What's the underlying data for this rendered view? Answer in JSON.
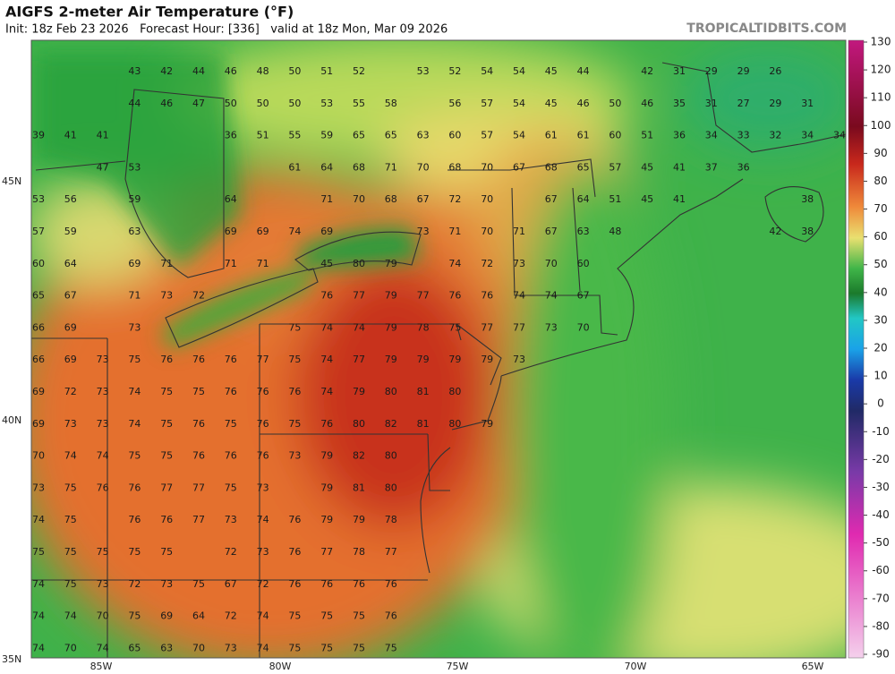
{
  "header": {
    "title": "AIGFS 2-meter Air Temperature (°F)",
    "subtitle": "Init: 18z Feb 23 2026   Forecast Hour: [336]   valid at 18z Mon, Mar 09 2026",
    "site": "TROPICALTIDBITS.COM"
  },
  "map": {
    "lat_labels": [
      "45N",
      "40N",
      "35N"
    ],
    "lon_labels": [
      "85W",
      "80W",
      "75W",
      "70W",
      "65W"
    ],
    "values": [
      [
        null,
        null,
        null,
        43,
        42,
        44,
        46,
        48,
        50,
        51,
        52,
        null,
        53,
        52,
        54,
        54,
        45,
        44,
        null,
        42,
        31,
        29,
        29,
        26,
        null,
        null
      ],
      [
        null,
        null,
        null,
        44,
        46,
        47,
        50,
        50,
        50,
        53,
        55,
        58,
        null,
        56,
        57,
        54,
        45,
        46,
        50,
        46,
        35,
        31,
        27,
        29,
        31,
        null
      ],
      [
        39,
        41,
        41,
        null,
        null,
        null,
        36,
        51,
        55,
        59,
        65,
        65,
        63,
        60,
        57,
        54,
        61,
        61,
        60,
        51,
        36,
        34,
        33,
        32,
        34,
        34
      ],
      [
        null,
        null,
        47,
        53,
        null,
        null,
        null,
        null,
        61,
        64,
        68,
        71,
        70,
        68,
        70,
        67,
        68,
        65,
        57,
        45,
        41,
        37,
        36,
        null,
        null,
        null
      ],
      [
        53,
        56,
        null,
        59,
        null,
        null,
        64,
        null,
        null,
        71,
        70,
        68,
        67,
        72,
        70,
        null,
        67,
        64,
        51,
        45,
        41,
        null,
        null,
        null,
        38,
        null
      ],
      [
        57,
        59,
        null,
        63,
        null,
        null,
        69,
        69,
        74,
        69,
        null,
        null,
        73,
        71,
        70,
        71,
        67,
        63,
        48,
        null,
        null,
        null,
        null,
        42,
        38,
        null
      ],
      [
        60,
        64,
        null,
        69,
        71,
        null,
        71,
        71,
        null,
        45,
        80,
        79,
        null,
        74,
        72,
        73,
        70,
        60,
        null,
        null,
        null,
        null,
        null,
        null,
        null,
        null
      ],
      [
        65,
        67,
        null,
        71,
        73,
        72,
        null,
        null,
        null,
        76,
        77,
        79,
        77,
        76,
        76,
        74,
        74,
        67,
        null,
        null,
        null,
        null,
        null,
        null,
        null,
        null
      ],
      [
        66,
        69,
        null,
        73,
        null,
        null,
        null,
        null,
        75,
        74,
        74,
        79,
        78,
        75,
        77,
        77,
        73,
        70,
        null,
        null,
        null,
        null,
        null,
        null,
        null,
        null
      ],
      [
        66,
        69,
        73,
        75,
        76,
        76,
        76,
        77,
        75,
        74,
        77,
        79,
        79,
        79,
        79,
        73,
        null,
        null,
        null,
        null,
        null,
        null,
        null,
        null,
        null,
        null
      ],
      [
        69,
        72,
        73,
        74,
        75,
        75,
        76,
        76,
        76,
        74,
        79,
        80,
        81,
        80,
        null,
        null,
        null,
        null,
        null,
        null,
        null,
        null,
        null,
        null,
        null,
        null
      ],
      [
        69,
        73,
        73,
        74,
        75,
        76,
        75,
        76,
        75,
        76,
        80,
        82,
        81,
        80,
        79,
        null,
        null,
        null,
        null,
        null,
        null,
        null,
        null,
        null,
        null,
        null
      ],
      [
        70,
        74,
        74,
        75,
        75,
        76,
        76,
        76,
        73,
        79,
        82,
        80,
        null,
        null,
        null,
        null,
        null,
        null,
        null,
        null,
        null,
        null,
        null,
        null,
        null,
        null
      ],
      [
        73,
        75,
        76,
        76,
        77,
        77,
        75,
        73,
        null,
        79,
        81,
        80,
        null,
        null,
        null,
        null,
        null,
        null,
        null,
        null,
        null,
        null,
        null,
        null,
        null,
        null
      ],
      [
        74,
        75,
        null,
        76,
        76,
        77,
        73,
        74,
        76,
        79,
        79,
        78,
        null,
        null,
        null,
        null,
        null,
        null,
        null,
        null,
        null,
        null,
        null,
        null,
        null,
        null
      ],
      [
        75,
        75,
        75,
        75,
        75,
        null,
        72,
        73,
        76,
        77,
        78,
        77,
        null,
        null,
        null,
        null,
        null,
        null,
        null,
        null,
        null,
        null,
        null,
        null,
        null,
        null
      ],
      [
        74,
        75,
        73,
        72,
        73,
        75,
        67,
        72,
        76,
        76,
        76,
        76,
        null,
        null,
        null,
        null,
        null,
        null,
        null,
        null,
        null,
        null,
        null,
        null,
        null,
        null
      ],
      [
        74,
        74,
        70,
        75,
        69,
        64,
        72,
        74,
        75,
        75,
        75,
        76,
        null,
        null,
        null,
        null,
        null,
        null,
        null,
        null,
        null,
        null,
        null,
        null,
        null,
        null
      ],
      [
        74,
        70,
        74,
        65,
        63,
        70,
        73,
        74,
        75,
        75,
        75,
        75,
        null,
        null,
        null,
        null,
        null,
        null,
        null,
        null,
        null,
        null,
        null,
        null,
        null,
        null
      ]
    ]
  },
  "colorbar": {
    "lim": [
      -90,
      130
    ],
    "ticks": [
      130,
      120,
      110,
      100,
      90,
      80,
      70,
      60,
      50,
      40,
      30,
      20,
      10,
      0,
      -10,
      -20,
      -30,
      -40,
      -50,
      -60,
      -70,
      -80,
      -90
    ]
  }
}
